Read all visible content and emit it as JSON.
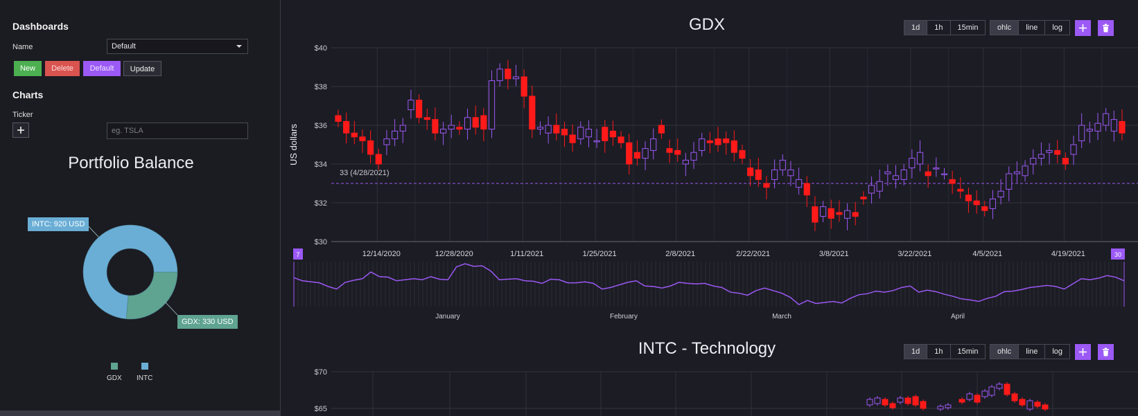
{
  "sidebar": {
    "dashboards_heading": "Dashboards",
    "name_label": "Name",
    "dashboard_select": "Default",
    "buttons": {
      "new": "New",
      "delete": "Delete",
      "default": "Default",
      "update": "Update"
    },
    "charts_heading": "Charts",
    "ticker_label": "Ticker",
    "ticker_placeholder": "eg. TSLA"
  },
  "portfolio": {
    "title": "Portfolio Balance",
    "slices": [
      {
        "name": "INTC",
        "value": 920,
        "label": "INTC: 920 USD",
        "color": "#6aaed6"
      },
      {
        "name": "GDX",
        "value": 330,
        "label": "GDX: 330 USD",
        "color": "#5fa391"
      }
    ],
    "legend": [
      "GDX",
      "INTC"
    ]
  },
  "colors": {
    "up": "#9b59f5",
    "down": "#ff1a1a",
    "accent": "#9b59f5"
  },
  "gdx": {
    "title": "GDX",
    "intervals": [
      "1d",
      "1h",
      "15min"
    ],
    "active_interval": "1d",
    "modes": [
      "ohlc",
      "line",
      "log"
    ],
    "active_mode": "ohlc",
    "ylabel": "US dollars",
    "yticks": [
      "$40",
      "$38",
      "$36",
      "$34",
      "$32",
      "$30"
    ],
    "xticks": [
      "12/14/2020",
      "12/28/2020",
      "1/11/2021",
      "1/25/2021",
      "2/8/2021",
      "2/22/2021",
      "3/8/2021",
      "3/22/2021",
      "4/5/2021",
      "4/19/2021"
    ],
    "reference_label": "33 (4/28/2021)",
    "reference_value": 33,
    "navigator": {
      "months": [
        "January",
        "February",
        "March",
        "April"
      ],
      "left_handle": "7",
      "right_handle": "30"
    }
  },
  "intc": {
    "title": "INTC - Technology",
    "intervals": [
      "1d",
      "1h",
      "15min"
    ],
    "active_interval": "1d",
    "modes": [
      "ohlc",
      "line",
      "log"
    ],
    "active_mode": "ohlc",
    "yticks": [
      "$70",
      "$65"
    ]
  },
  "chart_data": [
    {
      "type": "pie",
      "title": "Portfolio Balance",
      "categories": [
        "INTC",
        "GDX"
      ],
      "values": [
        920,
        330
      ],
      "unit": "USD",
      "legend": "bottom"
    },
    {
      "type": "candlestick",
      "title": "GDX",
      "ylabel": "US dollars",
      "ylim": [
        30,
        40
      ],
      "x": [
        "12/7/2020",
        "12/8",
        "12/9",
        "12/10",
        "12/11",
        "12/14",
        "12/15",
        "12/16",
        "12/17",
        "12/18",
        "12/21",
        "12/22",
        "12/23",
        "12/24",
        "12/28",
        "12/29",
        "12/30",
        "12/31",
        "1/4",
        "1/5",
        "1/6",
        "1/7",
        "1/8",
        "1/11",
        "1/12",
        "1/13",
        "1/14",
        "1/15",
        "1/19",
        "1/20",
        "1/21",
        "1/22",
        "1/25",
        "1/26",
        "1/27",
        "1/28",
        "1/29",
        "2/1",
        "2/2",
        "2/3",
        "2/4",
        "2/5",
        "2/8",
        "2/9",
        "2/10",
        "2/11",
        "2/12",
        "2/16",
        "2/17",
        "2/18",
        "2/19",
        "2/22",
        "2/23",
        "2/24",
        "2/25",
        "2/26",
        "3/1",
        "3/2",
        "3/3",
        "3/4",
        "3/5",
        "3/8",
        "3/9",
        "3/10",
        "3/11",
        "3/12",
        "3/15",
        "3/16",
        "3/17",
        "3/18",
        "3/19",
        "3/22",
        "3/23",
        "3/24",
        "3/25",
        "3/26",
        "3/29",
        "3/30",
        "3/31",
        "4/1",
        "4/5",
        "4/6",
        "4/7",
        "4/8",
        "4/9",
        "4/12",
        "4/13",
        "4/14",
        "4/15",
        "4/16",
        "4/19",
        "4/20",
        "4/21",
        "4/22",
        "4/23",
        "4/26",
        "4/27",
        "4/28"
      ],
      "open": [
        36.5,
        36.2,
        35.6,
        35.4,
        35.2,
        34.5,
        35.0,
        35.3,
        35.7,
        36.8,
        37.3,
        36.4,
        36.3,
        35.6,
        35.8,
        35.9,
        35.8,
        36.4,
        36.5,
        35.8,
        38.3,
        38.9,
        38.4,
        38.5,
        37.5,
        35.8,
        35.6,
        36.0,
        35.8,
        35.5,
        35.3,
        35.4,
        35.2,
        35.9,
        35.7,
        35.4,
        35.1,
        34.6,
        34.3,
        34.7,
        36.0,
        34.8,
        34.7,
        34.0,
        34.2,
        34.7,
        35.2,
        35.3,
        35.3,
        35.2,
        34.7,
        33.8,
        33.7,
        33.0,
        33.2,
        33.7,
        33.4,
        32.8,
        33.0,
        31.8,
        31.3,
        31.7,
        31.5,
        31.2,
        31.5,
        32.3,
        32.5,
        32.6,
        33.5,
        33.2,
        33.2,
        33.8,
        34.0,
        33.6,
        33.8,
        33.5,
        33.2,
        32.7,
        32.4,
        32.1,
        31.8,
        31.7,
        32.3,
        32.7,
        33.5,
        33.4,
        34.0,
        34.3,
        34.6,
        34.7,
        34.3,
        34.5,
        35.2,
        35.7,
        35.7,
        36.0,
        35.7,
        36.2
      ],
      "close": [
        36.2,
        35.6,
        35.4,
        35.2,
        34.5,
        34.0,
        35.3,
        35.7,
        36.0,
        37.3,
        36.4,
        36.3,
        35.6,
        35.8,
        36.0,
        35.8,
        36.4,
        35.9,
        35.8,
        38.3,
        38.9,
        38.4,
        38.5,
        37.5,
        35.8,
        35.9,
        36.0,
        35.6,
        35.5,
        35.1,
        35.9,
        35.8,
        35.2,
        35.2,
        35.4,
        35.1,
        34.0,
        34.3,
        34.8,
        35.3,
        35.6,
        34.6,
        34.5,
        34.2,
        34.6,
        35.3,
        35.1,
        35.0,
        35.1,
        34.6,
        34.3,
        33.4,
        33.2,
        32.8,
        33.7,
        34.2,
        33.7,
        33.2,
        32.4,
        31.0,
        31.8,
        31.2,
        31.4,
        31.6,
        31.3,
        32.2,
        32.9,
        33.1,
        33.6,
        33.4,
        33.7,
        34.3,
        34.6,
        33.4,
        33.8,
        33.5,
        33.0,
        32.6,
        32.1,
        31.9,
        31.6,
        32.2,
        32.6,
        33.5,
        33.6,
        33.9,
        34.3,
        34.5,
        34.7,
        34.5,
        34.0,
        35.0,
        36.0,
        35.8,
        36.1,
        36.6,
        36.3,
        35.6
      ]
    }
  ]
}
